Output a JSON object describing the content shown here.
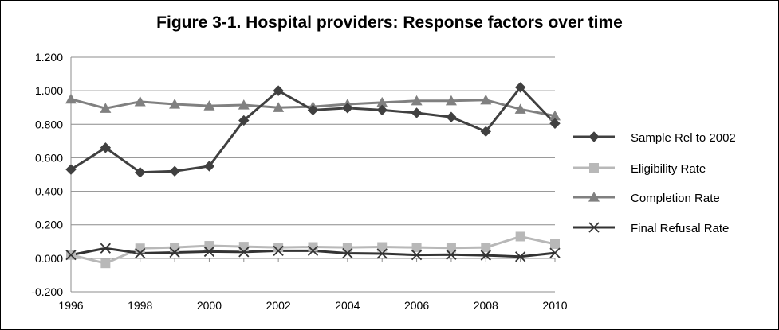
{
  "chart_data": {
    "type": "line",
    "title": "Figure 3-1.  Hospital providers: Response factors over time",
    "xlabel": "",
    "ylabel": "",
    "x": [
      1996,
      1997,
      1998,
      1999,
      2000,
      2001,
      2002,
      2003,
      2004,
      2005,
      2006,
      2007,
      2008,
      2009,
      2010
    ],
    "x_ticks": [
      "1996",
      "1998",
      "2000",
      "2002",
      "2004",
      "2006",
      "2008",
      "2010"
    ],
    "y_ticks": [
      "1.200",
      "1.000",
      "0.800",
      "0.600",
      "0.400",
      "0.200",
      "0.000",
      "-0.200"
    ],
    "xlim": [
      1996,
      2010
    ],
    "ylim": [
      -0.2,
      1.2
    ],
    "grid": true,
    "legend_position": "right",
    "series": [
      {
        "name": "Sample Rel to 2002",
        "marker": "diamond",
        "color": "#404040",
        "values": [
          0.53,
          0.66,
          0.513,
          0.52,
          0.55,
          0.823,
          1.0,
          0.885,
          0.897,
          0.885,
          0.868,
          0.843,
          0.757,
          1.02,
          0.805
        ]
      },
      {
        "name": "Eligibility Rate",
        "marker": "square",
        "color": "#b8b8b8",
        "values": [
          0.02,
          -0.03,
          0.06,
          0.065,
          0.075,
          0.07,
          0.065,
          0.068,
          0.065,
          0.068,
          0.065,
          0.062,
          0.065,
          0.13,
          0.085
        ]
      },
      {
        "name": "Completion Rate",
        "marker": "triangle",
        "color": "#808080",
        "values": [
          0.95,
          0.895,
          0.935,
          0.92,
          0.91,
          0.915,
          0.9,
          0.905,
          0.92,
          0.93,
          0.94,
          0.94,
          0.945,
          0.89,
          0.85
        ]
      },
      {
        "name": "Final Refusal Rate",
        "marker": "x",
        "color": "#333333",
        "values": [
          0.02,
          0.06,
          0.03,
          0.035,
          0.04,
          0.038,
          0.045,
          0.045,
          0.03,
          0.028,
          0.02,
          0.022,
          0.018,
          0.01,
          0.032
        ]
      }
    ]
  }
}
